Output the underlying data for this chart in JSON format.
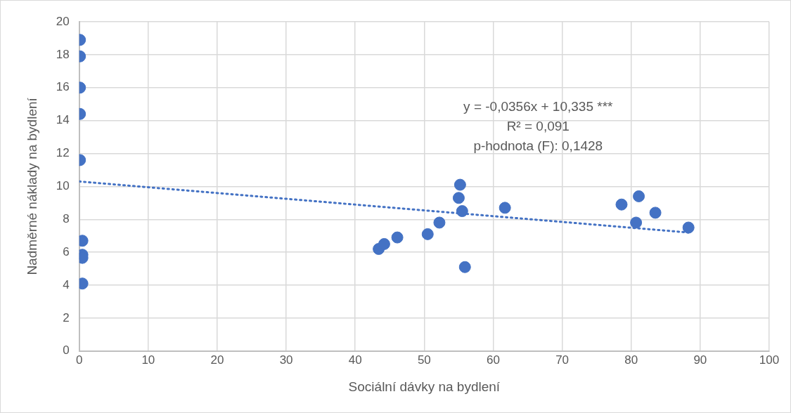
{
  "chart_data": {
    "type": "scatter",
    "xlabel": "Sociální dávky na bydlení",
    "ylabel": "Nadměrné náklady na bydlení",
    "xlim": [
      0,
      100
    ],
    "xticks": [
      0,
      10,
      20,
      30,
      40,
      50,
      60,
      70,
      80,
      90,
      100
    ],
    "ylim": [
      0,
      20
    ],
    "yticks": [
      0,
      2,
      4,
      6,
      8,
      10,
      12,
      14,
      16,
      18,
      20
    ],
    "grid": true,
    "legend": false,
    "marker": "circle",
    "annotations": [
      "y = -0,0356x + 10,335 ***",
      "R² = 0,091",
      "p-hodnota (F): 0,1428"
    ],
    "series": [
      {
        "color": "#4472c4",
        "x": [
          0.1,
          0.1,
          0.1,
          0.1,
          0.1,
          0.45,
          0.45,
          0.45,
          0.45,
          43.4,
          44.2,
          46.1,
          50.5,
          52.2,
          55.2,
          55.0,
          55.5,
          55.9,
          61.7,
          78.6,
          81.1,
          83.5,
          80.7,
          88.3
        ],
        "values": [
          18.9,
          17.9,
          16.0,
          14.4,
          11.6,
          6.7,
          5.85,
          5.66,
          4.1,
          6.2,
          6.5,
          6.9,
          7.1,
          7.8,
          10.1,
          9.3,
          8.5,
          5.1,
          8.7,
          8.9,
          9.4,
          8.4,
          7.8,
          7.5
        ]
      },
      {
        "type": "line",
        "color": "#4472c4",
        "line_style": "dotted",
        "marker": "none",
        "x": [
          0,
          88.3
        ],
        "values": [
          10.3,
          7.2
        ]
      }
    ]
  }
}
